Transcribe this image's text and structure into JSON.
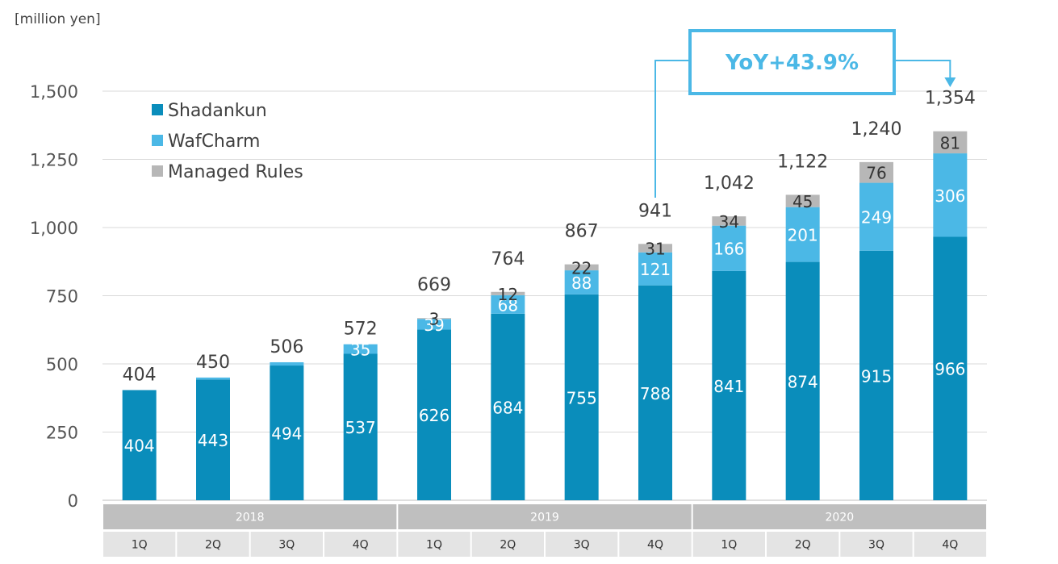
{
  "colors": {
    "shadankun": "#0a8dbb",
    "wafcharm": "#4bb8e6",
    "managed_rules": "#b7b7b7",
    "grid": "#d9d9d9",
    "year_band": "#bfbfbf",
    "quarter_band": "#e4e4e4",
    "callout": "#4bb8e6"
  },
  "unit_label": "[million yen]",
  "callout": {
    "text": "YoY+43.9%"
  },
  "legend_position": "top-left",
  "chart_data": {
    "type": "bar",
    "stacked": true,
    "ylim": [
      0,
      1500
    ],
    "yticks": [
      0,
      250,
      500,
      750,
      1000,
      1250,
      1500
    ],
    "ytick_labels": [
      "0",
      "250",
      "500",
      "750",
      "1,000",
      "1,250",
      "1,500"
    ],
    "grid": true,
    "years": [
      {
        "label": "2018",
        "quarters": 4
      },
      {
        "label": "2019",
        "quarters": 4
      },
      {
        "label": "2020",
        "quarters": 4
      }
    ],
    "categories": [
      "1Q",
      "2Q",
      "3Q",
      "4Q",
      "1Q",
      "2Q",
      "3Q",
      "4Q",
      "1Q",
      "2Q",
      "3Q",
      "4Q"
    ],
    "totals": [
      "404",
      "450",
      "506",
      "572",
      "669",
      "764",
      "867",
      "941",
      "1,042",
      "1,122",
      "1,240",
      "1,354"
    ],
    "series": [
      {
        "name": "Shadankun",
        "color_key": "shadankun",
        "values": [
          404,
          443,
          494,
          537,
          626,
          684,
          755,
          788,
          841,
          874,
          915,
          966
        ],
        "labels": [
          "404",
          "443",
          "494",
          "537",
          "626",
          "684",
          "755",
          "788",
          "841",
          "874",
          "915",
          "966"
        ]
      },
      {
        "name": "WafCharm",
        "color_key": "wafcharm",
        "values": [
          0,
          7,
          12,
          35,
          39,
          68,
          88,
          121,
          166,
          201,
          249,
          306
        ],
        "labels": [
          "",
          "",
          "",
          "35",
          "39",
          "68",
          "88",
          "121",
          "166",
          "201",
          "249",
          "306"
        ]
      },
      {
        "name": "Managed Rules",
        "color_key": "managed_rules",
        "values": [
          0,
          0,
          0,
          0,
          3,
          12,
          22,
          31,
          34,
          45,
          76,
          81
        ],
        "labels": [
          "",
          "",
          "",
          "",
          "3",
          "12",
          "22",
          "31",
          "34",
          "45",
          "76",
          "81"
        ]
      }
    ]
  }
}
